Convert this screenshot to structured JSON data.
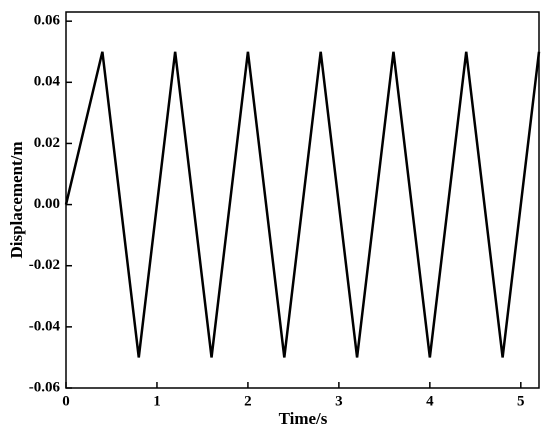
{
  "chart_data": {
    "type": "line",
    "x_label": "Time/s",
    "y_label": "Displacement/m",
    "x": [
      0,
      0.4,
      0.8,
      1.2,
      1.6,
      2.0,
      2.4,
      2.8,
      3.2,
      3.6,
      4.0,
      4.4,
      4.8,
      5.2
    ],
    "series": [
      {
        "color": "#000000",
        "values": [
          0,
          0.05,
          -0.05,
          0.05,
          -0.05,
          0.05,
          -0.05,
          0.05,
          -0.05,
          0.05,
          -0.05,
          0.05,
          -0.05,
          0.05
        ]
      }
    ],
    "xlim": [
      0,
      5.2
    ],
    "xticks": [
      0,
      1,
      2,
      3,
      4,
      5
    ],
    "ylim": [
      -0.06,
      0.063
    ],
    "yticks": [
      -0.06,
      -0.04,
      -0.02,
      {
        "value": 0,
        "label": "0.00"
      },
      0.02,
      0.04,
      0.06
    ],
    "grid": false
  }
}
